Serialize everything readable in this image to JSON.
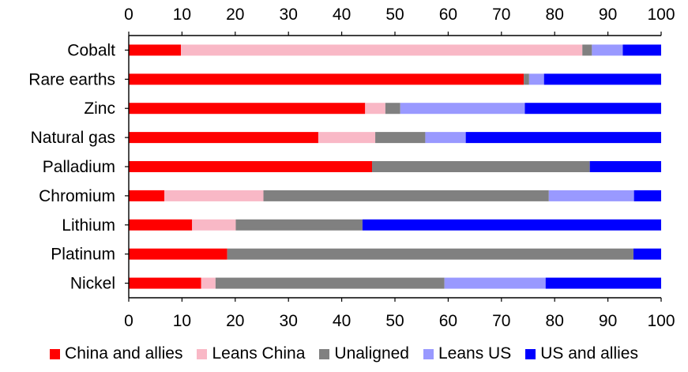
{
  "chart_data": {
    "type": "bar",
    "orientation": "horizontal",
    "stacked": true,
    "title": "",
    "xlabel": "",
    "ylabel": "",
    "xlim": [
      0,
      100
    ],
    "xticks": [
      "0",
      "10",
      "20",
      "30",
      "40",
      "50",
      "60",
      "70",
      "80",
      "90",
      "100"
    ],
    "xaxis_position": "top-and-bottom",
    "grid": false,
    "legend_position": "bottom",
    "categories": [
      "Cobalt",
      "Rare earths",
      "Zinc",
      "Natural gas",
      "Palladium",
      "Chromium",
      "Lithium",
      "Platinum",
      "Nickel"
    ],
    "series": [
      {
        "name": "China and allies",
        "color": "#ff0000",
        "values": [
          9.8,
          74.2,
          44.4,
          35.6,
          45.7,
          6.7,
          11.9,
          18.5,
          13.6
        ]
      },
      {
        "name": "Leans China",
        "color": "#f9b8c6",
        "values": [
          75.4,
          0.0,
          3.8,
          10.7,
          0.0,
          18.6,
          8.2,
          0.0,
          2.7
        ]
      },
      {
        "name": "Unaligned",
        "color": "#808080",
        "values": [
          1.8,
          1.0,
          2.8,
          9.4,
          40.9,
          53.6,
          23.8,
          76.3,
          43.0
        ]
      },
      {
        "name": "Leans US",
        "color": "#9999ff",
        "values": [
          5.8,
          2.8,
          23.4,
          7.6,
          0.0,
          16.0,
          0.0,
          0.0,
          19.0
        ]
      },
      {
        "name": "US and allies",
        "color": "#0000ff",
        "values": [
          7.2,
          22.0,
          25.6,
          36.7,
          13.4,
          5.1,
          56.1,
          5.2,
          21.7
        ]
      }
    ]
  }
}
